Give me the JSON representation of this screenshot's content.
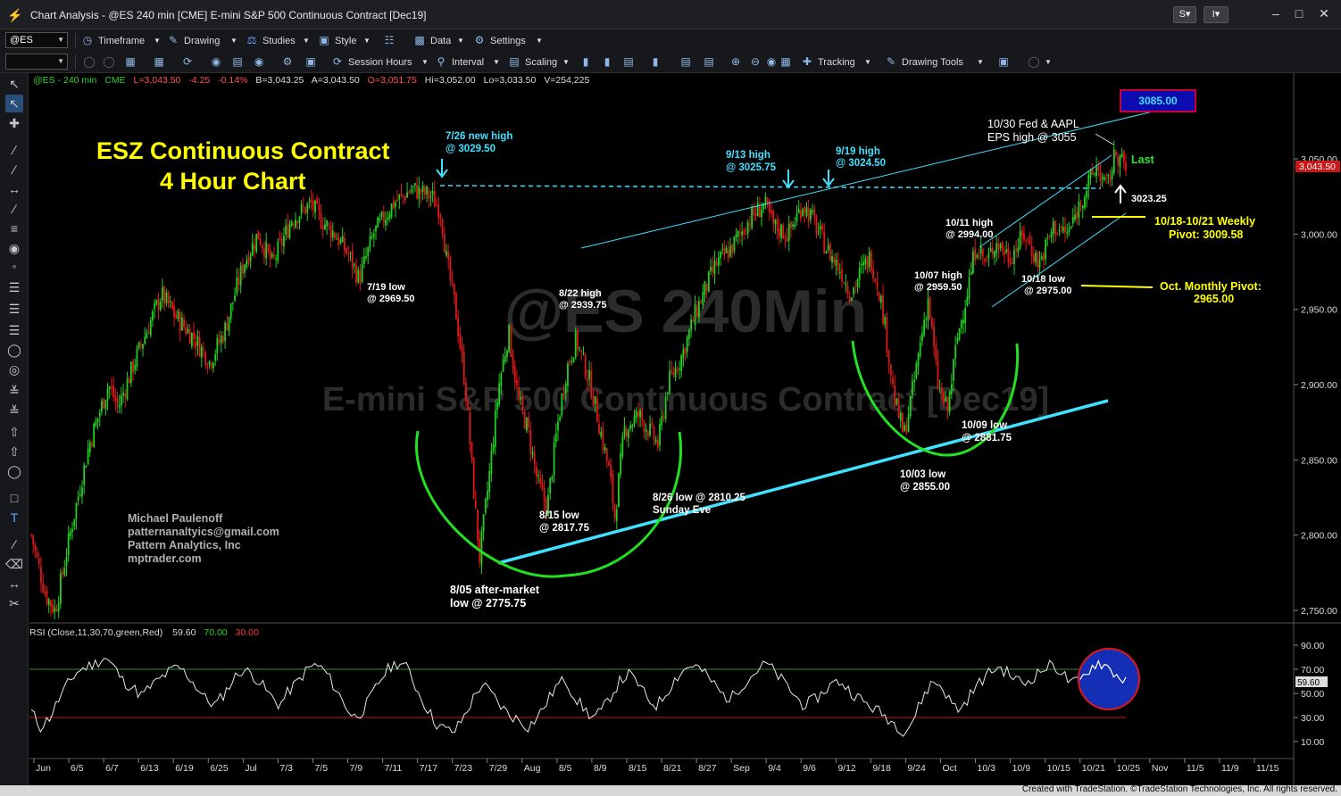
{
  "window": {
    "title": "Chart Analysis - @ES 240 min [CME] E-mini S&P 500 Continuous Contract [Dec19]",
    "s_button": "S",
    "i_button": "I"
  },
  "toolbar1": {
    "symbol": "@ES",
    "items": [
      "Timeframe",
      "Drawing",
      "Studies",
      "Style",
      "Data",
      "Settings"
    ]
  },
  "toolbar2": {
    "items": [
      "Session Hours",
      "Interval",
      "Scaling",
      "Tracking",
      "Drawing Tools"
    ]
  },
  "chart_header": {
    "symbol": "@ES - 240 min",
    "exchange": "CME",
    "last": "L=3,043.50",
    "change": "-4.25",
    "pct": "-0.14%",
    "bid": "B=3,043.25",
    "ask": "A=3,043.50",
    "open": "O=3,051.75",
    "high": "Hi=3,052.00",
    "low": "Lo=3,033.50",
    "volume": "V=254,225"
  },
  "watermark": {
    "line1": "@ES 240Min",
    "line2": "E-mini S&P 500 Continuous Contract [Dec19]"
  },
  "chart_data": {
    "type": "candlestick",
    "price_axis_ticks": [
      3050,
      3000,
      2950,
      2900,
      2850,
      2800,
      2750
    ],
    "price_axis_labels": [
      "3,050.00",
      "3,000.00",
      "2,950.00",
      "2,900.00",
      "2,850.00",
      "2,800.00",
      "2,750.00"
    ],
    "last_price_label": "3,043.50",
    "ylim": [
      2740,
      3110
    ],
    "date_axis_labels": [
      "Jun",
      "6/5",
      "6/7",
      "6/13",
      "6/19",
      "6/25",
      "Jul",
      "7/3",
      "7/5",
      "7/9",
      "7/11",
      "7/17",
      "7/23",
      "7/29",
      "Aug",
      "8/5",
      "8/9",
      "8/15",
      "8/21",
      "8/27",
      "Sep",
      "9/4",
      "9/6",
      "9/12",
      "9/18",
      "9/24",
      "Oct",
      "10/3",
      "10/9",
      "10/15",
      "10/21",
      "10/25",
      "Nov",
      "11/5",
      "11/9",
      "11/15"
    ],
    "price_path": [
      [
        0,
        2800
      ],
      [
        3,
        2760
      ],
      [
        5,
        2750
      ],
      [
        8,
        2800
      ],
      [
        12,
        2860
      ],
      [
        16,
        2900
      ],
      [
        18,
        2885
      ],
      [
        22,
        2920
      ],
      [
        27,
        2960
      ],
      [
        30,
        2945
      ],
      [
        34,
        2930
      ],
      [
        37,
        2915
      ],
      [
        40,
        2935
      ],
      [
        44,
        2980
      ],
      [
        47,
        3000
      ],
      [
        50,
        2980
      ],
      [
        54,
        3010
      ],
      [
        58,
        3020
      ],
      [
        60,
        3010
      ],
      [
        63,
        3000
      ],
      [
        66,
        2985
      ],
      [
        68,
        2970
      ],
      [
        71,
        3000
      ],
      [
        75,
        3020
      ],
      [
        79,
        3030
      ],
      [
        83,
        3025
      ],
      [
        85,
        3015
      ],
      [
        86,
        2985
      ],
      [
        88,
        2950
      ],
      [
        90,
        2900
      ],
      [
        92,
        2820
      ],
      [
        93,
        2785
      ],
      [
        95,
        2840
      ],
      [
        97,
        2900
      ],
      [
        99,
        2935
      ],
      [
        101,
        2890
      ],
      [
        103,
        2870
      ],
      [
        105,
        2835
      ],
      [
        107,
        2818
      ],
      [
        109,
        2870
      ],
      [
        111,
        2910
      ],
      [
        113,
        2930
      ],
      [
        116,
        2900
      ],
      [
        118,
        2870
      ],
      [
        120,
        2840
      ],
      [
        121,
        2812
      ],
      [
        123,
        2870
      ],
      [
        126,
        2880
      ],
      [
        128,
        2870
      ],
      [
        130,
        2860
      ],
      [
        132,
        2900
      ],
      [
        135,
        2920
      ],
      [
        138,
        2950
      ],
      [
        142,
        2980
      ],
      [
        145,
        2990
      ],
      [
        147,
        3000
      ],
      [
        149,
        3010
      ],
      [
        152,
        3020
      ],
      [
        154,
        3005
      ],
      [
        157,
        3000
      ],
      [
        160,
        3020
      ],
      [
        162,
        3010
      ],
      [
        165,
        2990
      ],
      [
        168,
        2975
      ],
      [
        170,
        2960
      ],
      [
        172,
        2975
      ],
      [
        174,
        2985
      ],
      [
        176,
        2960
      ],
      [
        177,
        2940
      ],
      [
        179,
        2890
      ],
      [
        181,
        2866
      ],
      [
        183,
        2900
      ],
      [
        185,
        2940
      ],
      [
        186,
        2957
      ],
      [
        188,
        2900
      ],
      [
        190,
        2882
      ],
      [
        192,
        2930
      ],
      [
        194,
        2960
      ],
      [
        196,
        2994
      ],
      [
        198,
        2980
      ],
      [
        200,
        2995
      ],
      [
        203,
        2985
      ],
      [
        206,
        3000
      ],
      [
        209,
        2980
      ],
      [
        212,
        3005
      ],
      [
        215,
        3000
      ],
      [
        218,
        3025
      ],
      [
        221,
        3045
      ],
      [
        223,
        3030
      ],
      [
        225,
        3055
      ],
      [
        227,
        3043
      ]
    ],
    "rsi_axis_labels": [
      "90.00",
      "70.00",
      "50.00",
      "30.00",
      "10.00"
    ],
    "rsi_label": "RSI (Close,11,30,70,green,Red)",
    "rsi_value": "59.60",
    "rsi_ob": "70.00",
    "rsi_os": "30.00",
    "rsi_series": [
      35,
      22,
      30,
      45,
      58,
      68,
      72,
      75,
      80,
      72,
      60,
      55,
      48,
      56,
      62,
      68,
      72,
      65,
      55,
      45,
      40,
      50,
      62,
      70,
      66,
      58,
      48,
      40,
      52,
      60,
      70,
      74,
      68,
      55,
      42,
      30,
      35,
      48,
      62,
      72,
      76,
      70,
      52,
      38,
      25,
      20,
      18,
      30,
      45,
      58,
      50,
      40,
      32,
      28,
      22,
      30,
      42,
      55,
      62,
      48,
      38,
      30,
      35,
      48,
      60,
      66,
      58,
      45,
      40,
      50,
      62,
      70,
      74,
      68,
      60,
      50,
      45,
      55,
      62,
      70,
      75,
      66,
      58,
      48,
      40,
      44,
      50,
      58,
      60,
      52,
      46,
      40,
      36,
      30,
      24,
      18,
      30,
      48,
      60,
      56,
      42,
      36,
      48,
      58,
      66,
      72,
      68,
      62,
      58,
      64,
      70,
      74,
      68,
      58,
      60,
      70,
      76,
      72,
      65,
      60
    ]
  },
  "annotations": {
    "title1": "ESZ Continuous Contract",
    "title2": "4 Hour Chart",
    "h726_1": "7/26 new high",
    "h726_2": "@ 3029.50",
    "h913_1": "9/13 high",
    "h913_2": "@ 3025.75",
    "h919_1": "9/19 high",
    "h919_2": "@ 3024.50",
    "h1030_1": "10/30 Fed & AAPL",
    "h1030_2": "EPS high @ 3055",
    "target": "3085.00",
    "last_label": "Last",
    "val3023": "3023.25",
    "weekly1": "10/18-10/21 Weekly",
    "weekly2": "Pivot: 3009.58",
    "monthly1": "Oct. Monthly Pivot:",
    "monthly2": "2965.00",
    "l719_1": "7/19 low",
    "l719_2": "@ 2969.50",
    "h822_1": "8/22 high",
    "h822_2": "@ 2939.75",
    "h1011_1": "10/11 high",
    "h1011_2": "@ 2994.00",
    "h1007_1": "10/07 high",
    "h1007_2": "@ 2959.50",
    "l1018_1": "10/18 low",
    "l1018_2": "@ 2975.00",
    "l1009_1": "10/09 low",
    "l1009_2": "@ 2881.75",
    "l1003_1": "10/03 low",
    "l1003_2": "@ 2855.00",
    "l815_1": "8/15 low",
    "l815_2": "@ 2817.75",
    "l826_1": "8/26 low @ 2810.25",
    "l826_2": "Sunday Eve",
    "l805_1": "8/05 after-market",
    "l805_2": "low @ 2775.75",
    "author1": "Michael Paulenoff",
    "author2": "patternanaltyics@gmail.com",
    "author3": "Pattern Analytics, Inc",
    "author4": "mptrader.com"
  },
  "status": {
    "copyright": "Created with TradeStation. ©TradeStation Technologies, Inc. All rights reserved."
  }
}
